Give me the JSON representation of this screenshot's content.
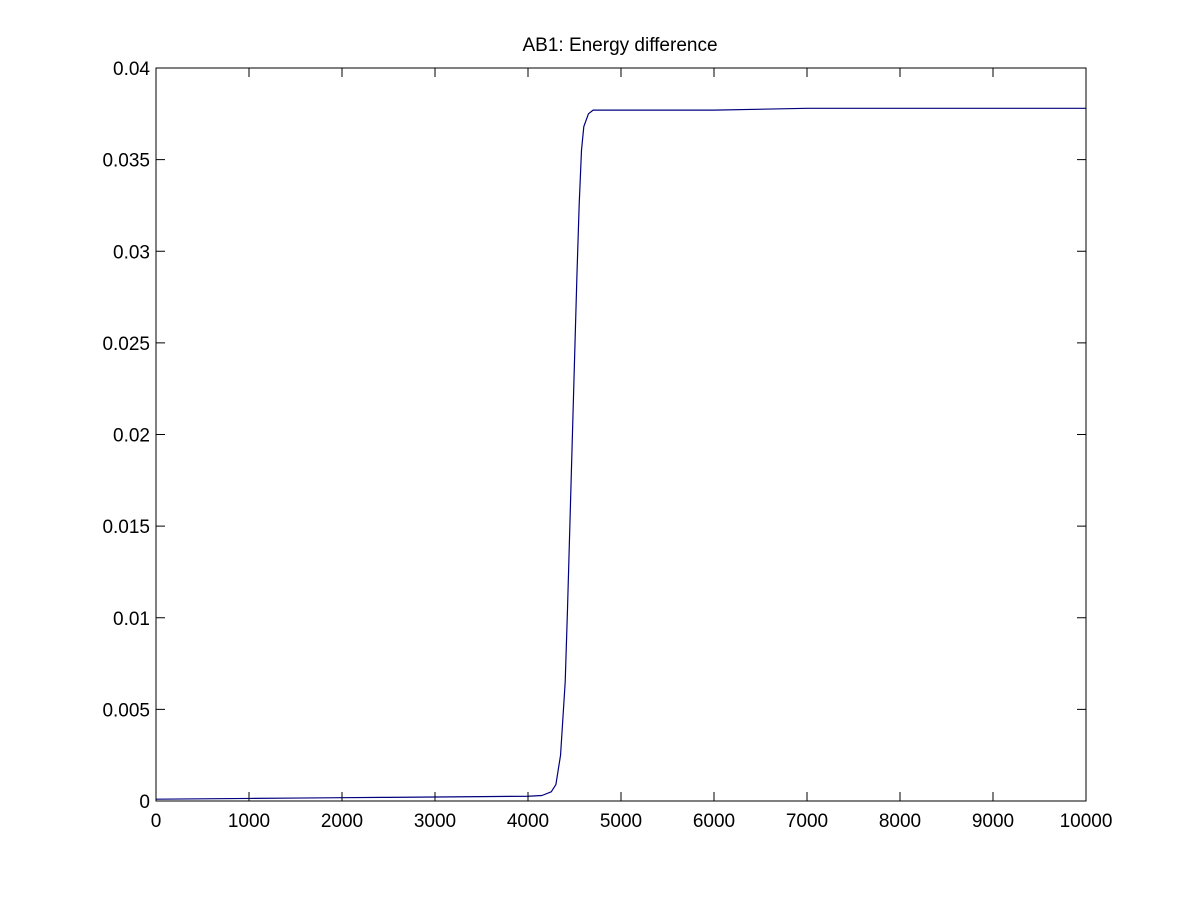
{
  "chart_data": {
    "type": "line",
    "title": "AB1: Energy difference",
    "xlabel": "",
    "ylabel": "",
    "xlim": [
      0,
      10000
    ],
    "ylim": [
      0,
      0.04
    ],
    "grid": false,
    "x_ticks": [
      0,
      1000,
      2000,
      3000,
      4000,
      5000,
      6000,
      7000,
      8000,
      9000,
      10000
    ],
    "x_tick_labels": [
      "0",
      "1000",
      "2000",
      "3000",
      "4000",
      "5000",
      "6000",
      "7000",
      "8000",
      "9000",
      "10000"
    ],
    "y_ticks": [
      0,
      0.005,
      0.01,
      0.015,
      0.02,
      0.025,
      0.03,
      0.035,
      0.04
    ],
    "y_tick_labels": [
      "0",
      "0.005",
      "0.01",
      "0.015",
      "0.02",
      "0.025",
      "0.03",
      "0.035",
      "0.04"
    ],
    "series": [
      {
        "color": "#00007f",
        "x": [
          0,
          500,
          1000,
          1500,
          2000,
          2500,
          3000,
          3500,
          4000,
          4150,
          4250,
          4300,
          4350,
          4400,
          4425,
          4450,
          4475,
          4500,
          4525,
          4550,
          4575,
          4600,
          4650,
          4700,
          4800,
          5000,
          6000,
          7000,
          8000,
          9000,
          10000
        ],
        "y": [
          0.0001,
          0.00012,
          0.00014,
          0.00016,
          0.00018,
          0.0002,
          0.00022,
          0.00024,
          0.00026,
          0.0003,
          0.0005,
          0.0009,
          0.0025,
          0.0065,
          0.0105,
          0.015,
          0.0195,
          0.024,
          0.0285,
          0.0325,
          0.0355,
          0.0368,
          0.0375,
          0.0377,
          0.0377,
          0.0377,
          0.0377,
          0.0378,
          0.0378,
          0.0378,
          0.0378
        ]
      }
    ]
  }
}
